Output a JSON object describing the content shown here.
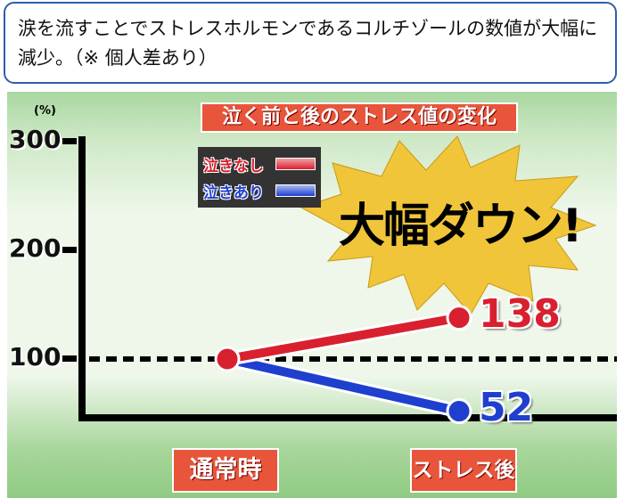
{
  "caption": "涙を流すことでストレスホルモンであるコルチゾールの数値が大幅に減少。（※ 個人差あり）",
  "chart_data": {
    "type": "line",
    "title": "泣く前と後のストレス値の変化",
    "ylabel": "(%)",
    "yticks": [
      "300",
      "200",
      "100"
    ],
    "ylim": [
      45,
      300
    ],
    "categories": [
      "通常時",
      "ストレス後"
    ],
    "series": [
      {
        "name": "泣きなし",
        "values": [
          100,
          138
        ],
        "color": "#d8202e"
      },
      {
        "name": "泣きあり",
        "values": [
          100,
          52
        ],
        "color": "#1f3fcf"
      }
    ],
    "reference_line": 100,
    "annotation": "大幅ダウン!",
    "data_labels": [
      "138",
      "52"
    ]
  }
}
